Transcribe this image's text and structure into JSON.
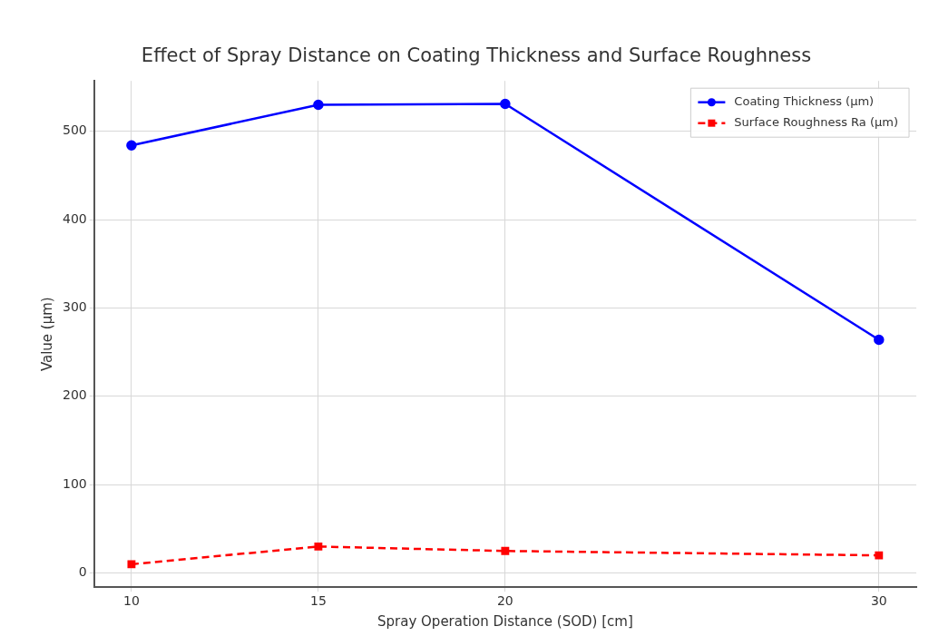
{
  "chart_data": {
    "type": "line",
    "title": "Effect of Spray Distance on Coating Thickness and Surface Roughness",
    "xlabel": "Spray Operation Distance (SOD) [cm]",
    "ylabel": "Value (µm)",
    "x": [
      10,
      15,
      20,
      30
    ],
    "xlim": [
      9,
      31
    ],
    "xticks": [
      10,
      15,
      20,
      30
    ],
    "ylim": [
      -16,
      557
    ],
    "yticks": [
      0,
      100,
      200,
      300,
      400,
      500
    ],
    "series": [
      {
        "name": "Coating Thickness (µm)",
        "color": "#0000ff",
        "values": [
          484,
          530,
          531,
          264
        ],
        "marker": "circle",
        "line_style": "solid"
      },
      {
        "name": "Surface Roughness Ra (µm)",
        "color": "#ff0000",
        "values": [
          10,
          30,
          25,
          20
        ],
        "marker": "square",
        "line_style": "dashed"
      }
    ],
    "grid": true,
    "legend": "top right"
  }
}
